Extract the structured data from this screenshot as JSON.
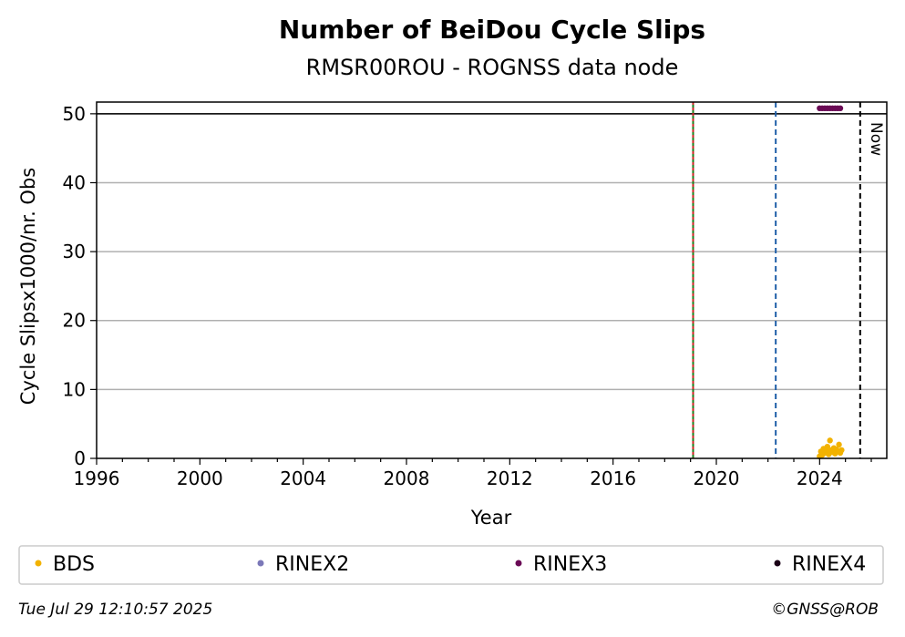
{
  "chart_data": {
    "type": "scatter",
    "title": "Number of BeiDou Cycle Slips",
    "subtitle": "RMSR00ROU - ROGNSS data node",
    "xlabel": "Year",
    "ylabel": "Cycle Slipsx1000/nr. Obs",
    "xlim": [
      1996,
      2026.6
    ],
    "ylim": [
      0,
      51.7
    ],
    "xticks": [
      1996,
      2000,
      2004,
      2008,
      2012,
      2016,
      2020,
      2024
    ],
    "yticks": [
      0,
      10,
      20,
      30,
      40,
      50
    ],
    "grid": "horizontal",
    "reference_lines": [
      {
        "type": "h",
        "value": 50,
        "color": "#000000",
        "style": "solid"
      },
      {
        "type": "v",
        "value": 2019.1,
        "color": "#1a7f1a",
        "style": "solid"
      },
      {
        "type": "v",
        "value": 2019.1,
        "color": "#cc2222",
        "style": "dotted"
      },
      {
        "type": "v",
        "value": 2022.3,
        "color": "#1f5fa8",
        "style": "dashed"
      },
      {
        "type": "v",
        "value": 2025.57,
        "color": "#000000",
        "style": "dashed",
        "label": "Now"
      }
    ],
    "series": [
      {
        "name": "BDS",
        "color": "#f2b200",
        "points": [
          [
            2024.0,
            0.3
          ],
          [
            2024.05,
            1.0
          ],
          [
            2024.1,
            0.5
          ],
          [
            2024.15,
            1.4
          ],
          [
            2024.2,
            0.8
          ],
          [
            2024.25,
            1.1
          ],
          [
            2024.3,
            1.7
          ],
          [
            2024.35,
            0.6
          ],
          [
            2024.4,
            2.6
          ],
          [
            2024.45,
            1.2
          ],
          [
            2024.5,
            0.9
          ],
          [
            2024.55,
            1.5
          ],
          [
            2024.6,
            0.7
          ],
          [
            2024.65,
            1.3
          ],
          [
            2024.7,
            1.0
          ],
          [
            2024.75,
            2.0
          ],
          [
            2024.8,
            0.8
          ],
          [
            2024.85,
            1.2
          ]
        ]
      },
      {
        "name": "RINEX2",
        "color": "#7b78b8",
        "points": []
      },
      {
        "name": "RINEX3",
        "color": "#6a0a55",
        "points": [
          [
            2024.0,
            50.8
          ],
          [
            2024.1,
            50.8
          ],
          [
            2024.2,
            50.8
          ],
          [
            2024.3,
            50.8
          ],
          [
            2024.4,
            50.8
          ],
          [
            2024.5,
            50.8
          ],
          [
            2024.6,
            50.8
          ],
          [
            2024.7,
            50.8
          ],
          [
            2024.8,
            50.8
          ]
        ]
      },
      {
        "name": "RINEX4",
        "color": "#1a0016",
        "points": []
      }
    ],
    "legend_position": "bottom"
  },
  "footer": {
    "timestamp": "Tue Jul 29 12:10:57 2025",
    "credit": "©GNSS@ROB"
  }
}
